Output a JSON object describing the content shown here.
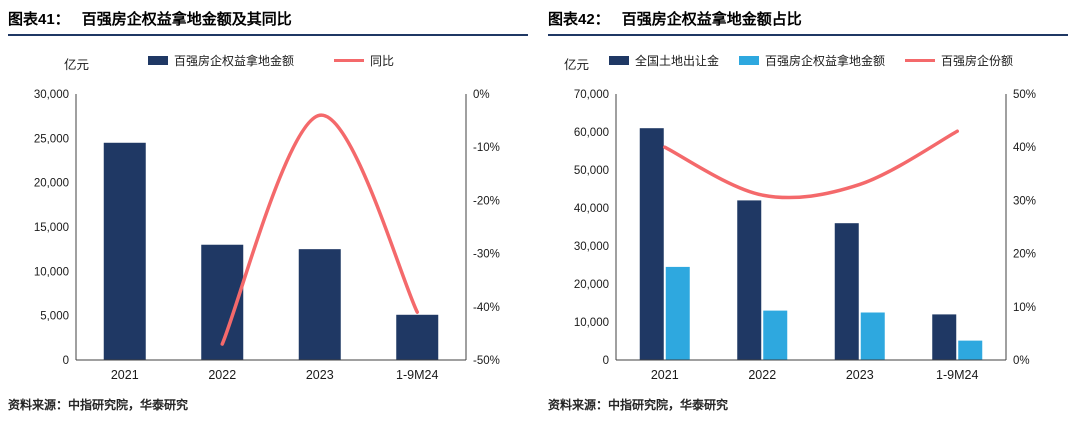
{
  "colors": {
    "navy": "#1F3864",
    "light_blue": "#2EA8DF",
    "red": "#F4696B",
    "axis_line": "#404040",
    "tick_text": "#1a1a1a",
    "title_underline": "#1F3864"
  },
  "chart_data": [
    {
      "fig_label": "图表41：",
      "title": "百强房企权益拿地金额及其同比",
      "unit_label": "亿元",
      "source": "资料来源：中指研究院，华泰研究",
      "type": "bar+line",
      "categories": [
        "2021",
        "2022",
        "2023",
        "1-9M24"
      ],
      "left_axis": {
        "min": 0,
        "max": 30000,
        "step": 5000,
        "format": "number"
      },
      "right_axis": {
        "min": -50,
        "max": 0,
        "step": 10,
        "format": "percent"
      },
      "legend_position": "top",
      "grid": false,
      "series": [
        {
          "name": "百强房企权益拿地金额",
          "type": "bar",
          "axis": "left",
          "color": "navy",
          "values": [
            24500,
            13000,
            12500,
            5100
          ]
        },
        {
          "name": "同比",
          "type": "line",
          "axis": "right",
          "color": "red",
          "values": [
            null,
            -47,
            -4,
            -41
          ]
        }
      ]
    },
    {
      "fig_label": "图表42：",
      "title": "百强房企权益拿地金额占比",
      "unit_label": "亿元",
      "source": "资料来源：中指研究院，华泰研究",
      "type": "bar+line",
      "categories": [
        "2021",
        "2022",
        "2023",
        "1-9M24"
      ],
      "left_axis": {
        "min": 0,
        "max": 70000,
        "step": 10000,
        "format": "number"
      },
      "right_axis": {
        "min": 0,
        "max": 50,
        "step": 10,
        "format": "percent"
      },
      "legend_position": "top",
      "grid": false,
      "series": [
        {
          "name": "全国土地出让金",
          "type": "bar",
          "axis": "left",
          "color": "navy",
          "values": [
            61000,
            42000,
            36000,
            12000
          ]
        },
        {
          "name": "百强房企权益拿地金额",
          "type": "bar",
          "axis": "left",
          "color": "light_blue",
          "values": [
            24500,
            13000,
            12500,
            5100
          ]
        },
        {
          "name": "百强房企份额",
          "type": "line",
          "axis": "right",
          "color": "red",
          "values": [
            40,
            31,
            33,
            43
          ]
        }
      ]
    }
  ]
}
